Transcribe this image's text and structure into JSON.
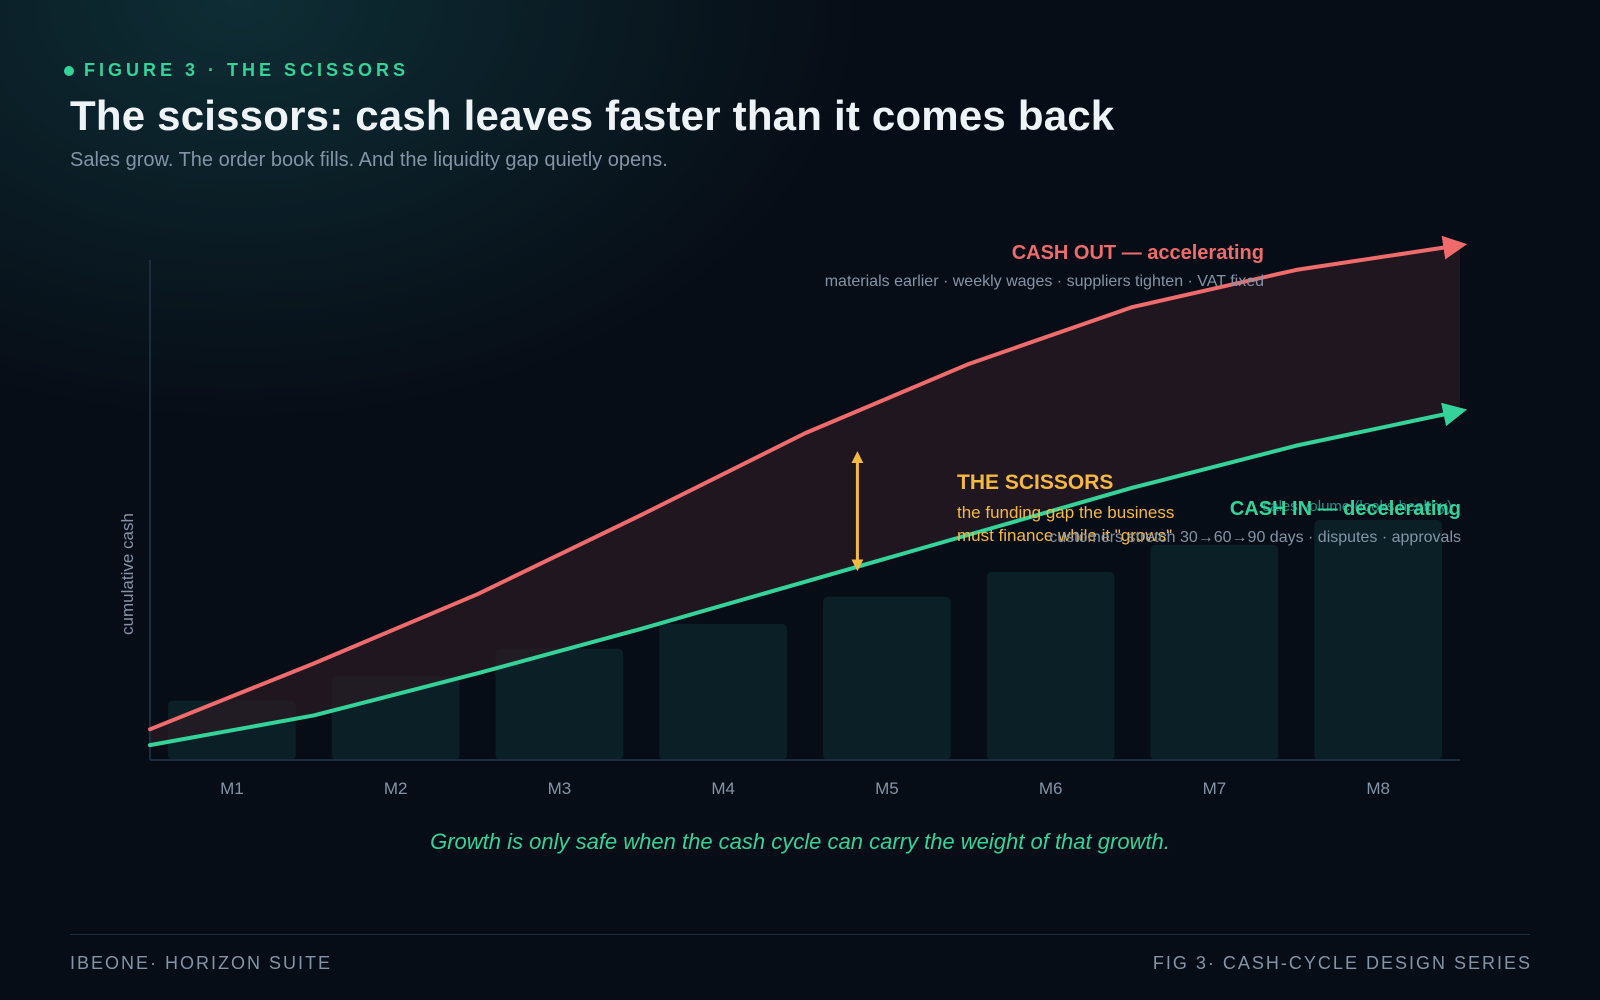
{
  "header": {
    "eyebrow": "FIGURE 3 · THE SCISSORS",
    "title": "The scissors: cash leaves faster than it comes back",
    "subtitle": "Sales grow. The order book fills. And the liquidity gap quietly opens."
  },
  "chart_data": {
    "type": "line",
    "categories": [
      "M1",
      "M2",
      "M3",
      "M4",
      "M5",
      "M6",
      "M7",
      "M8"
    ],
    "ylabel": "cumulative cash",
    "series": [
      {
        "name": "CASH OUT — accelerating",
        "note": "materials earlier · weekly wages · suppliers tighten · VAT fixed",
        "color": "#f06b6b",
        "x": [
          -0.5,
          0.5,
          1.5,
          2.5,
          3.5,
          4.5,
          5.5,
          6.5,
          7.5
        ],
        "values": [
          6.2,
          19.5,
          33.5,
          49.5,
          66,
          80,
          91.5,
          99,
          104
        ]
      },
      {
        "name": "CASH IN — decelerating",
        "note": "customers stretch 30→60→90 days · disputes · approvals",
        "color": "#34d399",
        "x": [
          -0.5,
          0.5,
          1.5,
          2.5,
          3.5,
          4.5,
          5.5,
          6.5,
          7.5
        ],
        "values": [
          3,
          9,
          17.5,
          26.5,
          36,
          45.5,
          55,
          63.5,
          70.5
        ]
      }
    ],
    "bars": {
      "name": "sales volume (looks healthy)",
      "values": [
        12,
        17,
        22.5,
        27.5,
        33,
        38,
        43.5,
        48.5
      ],
      "color": "#0b1f27"
    },
    "annotation": {
      "title": "THE SCISSORS",
      "text_line1": "the funding gap the business",
      "text_line2": "must finance while it \"grows\"",
      "color": "#f5b942",
      "x": 3.82,
      "y_from": 36.5,
      "y_to": 64
    },
    "ylim": [
      0,
      101
    ],
    "grid": false,
    "caption": "Growth is only safe when the cash cycle can carry the weight of that growth."
  },
  "footer": {
    "left": "IBEONE· HORIZON SUITE",
    "right": "FIG 3· CASH-CYCLE DESIGN SERIES"
  }
}
